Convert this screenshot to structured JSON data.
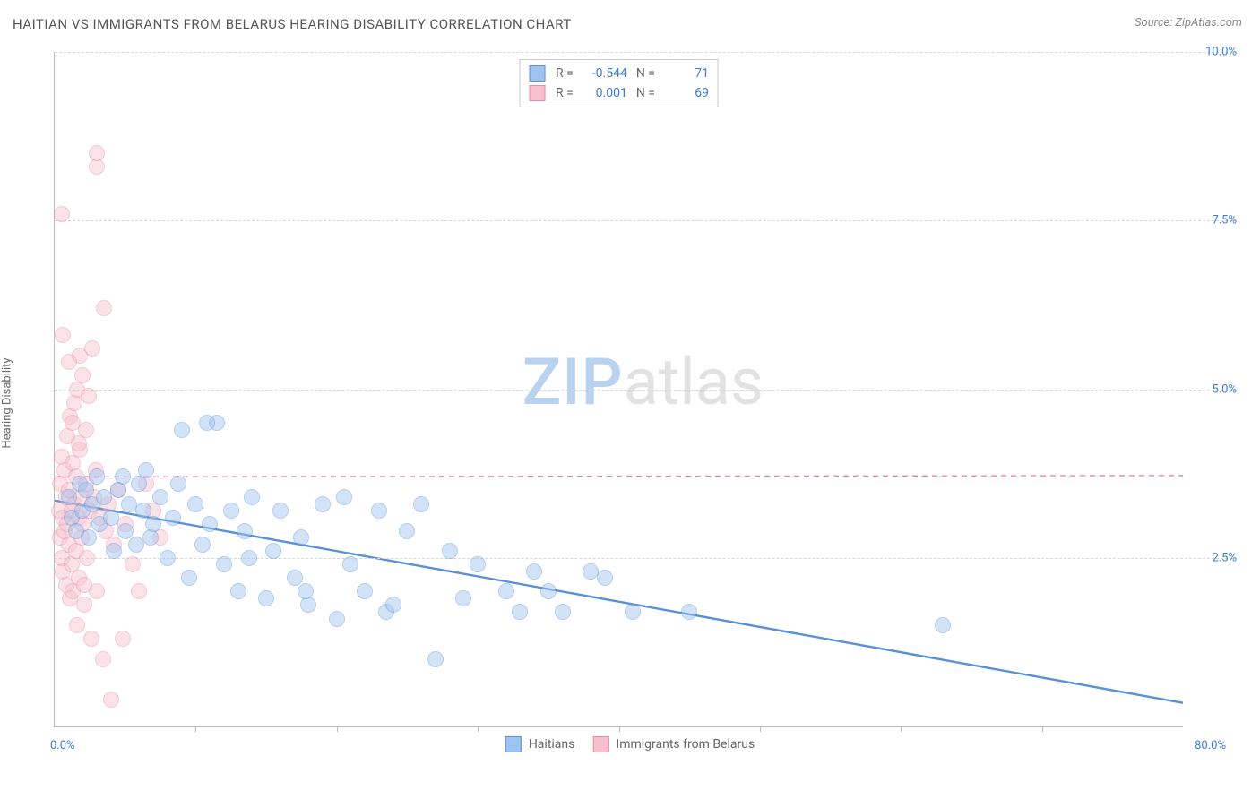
{
  "title": "HAITIAN VS IMMIGRANTS FROM BELARUS HEARING DISABILITY CORRELATION CHART",
  "source": "Source: ZipAtlas.com",
  "y_axis_label": "Hearing Disability",
  "watermark": {
    "part1": "ZIP",
    "part2": "atlas"
  },
  "chart": {
    "type": "scatter",
    "background_color": "#ffffff",
    "grid_color": "#d8d8d8",
    "axis_color": "#bbbbbb",
    "axis_label_color": "#3b7dd8",
    "x": {
      "min": 0,
      "max": 80,
      "min_label": "0.0%",
      "max_label": "80.0%",
      "tick_step": 10
    },
    "y": {
      "min": 0,
      "max": 10,
      "ticks": [
        2.5,
        5.0,
        7.5,
        10.0
      ],
      "tick_labels": [
        "2.5%",
        "5.0%",
        "7.5%",
        "10.0%"
      ]
    },
    "marker_radius": 9,
    "marker_opacity": 0.45,
    "marker_border_width": 1.2,
    "series": [
      {
        "name": "Haitians",
        "fill_color": "#9ec3ef",
        "border_color": "#5a91d6",
        "r_value": "-0.544",
        "n_value": "71",
        "trend": {
          "y_at_xmin": 3.35,
          "y_at_xmax": 0.35,
          "stroke_width": 2.4,
          "dash": "none"
        },
        "points": [
          [
            1.0,
            3.4
          ],
          [
            1.2,
            3.1
          ],
          [
            1.5,
            2.9
          ],
          [
            1.8,
            3.6
          ],
          [
            2.0,
            3.2
          ],
          [
            2.2,
            3.5
          ],
          [
            2.4,
            2.8
          ],
          [
            2.7,
            3.3
          ],
          [
            3.0,
            3.7
          ],
          [
            3.2,
            3.0
          ],
          [
            3.5,
            3.4
          ],
          [
            4.0,
            3.1
          ],
          [
            4.2,
            2.6
          ],
          [
            4.5,
            3.5
          ],
          [
            5.0,
            2.9
          ],
          [
            5.3,
            3.3
          ],
          [
            5.8,
            2.7
          ],
          [
            6.0,
            3.6
          ],
          [
            6.3,
            3.2
          ],
          [
            6.8,
            2.8
          ],
          [
            7.0,
            3.0
          ],
          [
            7.5,
            3.4
          ],
          [
            8.0,
            2.5
          ],
          [
            8.4,
            3.1
          ],
          [
            9.0,
            4.4
          ],
          [
            9.5,
            2.2
          ],
          [
            10.0,
            3.3
          ],
          [
            10.5,
            2.7
          ],
          [
            11.0,
            3.0
          ],
          [
            11.5,
            4.5
          ],
          [
            12.0,
            2.4
          ],
          [
            12.5,
            3.2
          ],
          [
            13.0,
            2.0
          ],
          [
            13.5,
            2.9
          ],
          [
            14.0,
            3.4
          ],
          [
            15.0,
            1.9
          ],
          [
            15.5,
            2.6
          ],
          [
            16.0,
            3.2
          ],
          [
            17.0,
            2.2
          ],
          [
            17.5,
            2.8
          ],
          [
            18.0,
            1.8
          ],
          [
            19.0,
            3.3
          ],
          [
            20.0,
            1.6
          ],
          [
            20.5,
            3.4
          ],
          [
            21.0,
            2.4
          ],
          [
            22.0,
            2.0
          ],
          [
            23.0,
            3.2
          ],
          [
            23.5,
            1.7
          ],
          [
            25.0,
            2.9
          ],
          [
            26.0,
            3.3
          ],
          [
            27.0,
            1.0
          ],
          [
            28.0,
            2.6
          ],
          [
            29.0,
            1.9
          ],
          [
            30.0,
            2.4
          ],
          [
            32.0,
            2.0
          ],
          [
            33.0,
            1.7
          ],
          [
            34.0,
            2.3
          ],
          [
            35.0,
            2.0
          ],
          [
            36.0,
            1.7
          ],
          [
            38.0,
            2.3
          ],
          [
            39.0,
            2.2
          ],
          [
            41.0,
            1.7
          ],
          [
            45.0,
            1.7
          ],
          [
            63.0,
            1.5
          ],
          [
            4.8,
            3.7
          ],
          [
            6.5,
            3.8
          ],
          [
            8.8,
            3.6
          ],
          [
            10.8,
            4.5
          ],
          [
            13.8,
            2.5
          ],
          [
            17.8,
            2.0
          ],
          [
            24.0,
            1.8
          ]
        ]
      },
      {
        "name": "Immigrants from Belarus",
        "fill_color": "#f7c0ce",
        "border_color": "#e88aa3",
        "r_value": "0.001",
        "n_value": "69",
        "trend": {
          "y_at_xmin": 3.7,
          "y_at_xmax": 3.72,
          "stroke_width": 1.4,
          "dash": "6,5"
        },
        "points": [
          [
            0.3,
            3.2
          ],
          [
            0.4,
            2.8
          ],
          [
            0.4,
            3.6
          ],
          [
            0.5,
            2.5
          ],
          [
            0.5,
            4.0
          ],
          [
            0.6,
            3.1
          ],
          [
            0.6,
            2.3
          ],
          [
            0.7,
            3.8
          ],
          [
            0.7,
            2.9
          ],
          [
            0.8,
            3.4
          ],
          [
            0.8,
            2.1
          ],
          [
            0.9,
            4.3
          ],
          [
            0.9,
            3.0
          ],
          [
            1.0,
            2.7
          ],
          [
            1.0,
            3.5
          ],
          [
            1.1,
            1.9
          ],
          [
            1.1,
            4.6
          ],
          [
            1.2,
            3.2
          ],
          [
            1.2,
            2.4
          ],
          [
            1.3,
            3.9
          ],
          [
            1.3,
            2.0
          ],
          [
            1.4,
            4.8
          ],
          [
            1.4,
            3.3
          ],
          [
            1.5,
            2.6
          ],
          [
            1.5,
            3.7
          ],
          [
            1.6,
            1.5
          ],
          [
            1.6,
            5.0
          ],
          [
            1.7,
            3.1
          ],
          [
            1.7,
            2.2
          ],
          [
            1.8,
            4.1
          ],
          [
            1.8,
            5.5
          ],
          [
            1.9,
            3.4
          ],
          [
            1.9,
            2.8
          ],
          [
            2.0,
            5.2
          ],
          [
            2.0,
            3.0
          ],
          [
            2.1,
            1.8
          ],
          [
            2.2,
            4.4
          ],
          [
            2.2,
            3.6
          ],
          [
            2.3,
            2.5
          ],
          [
            2.4,
            4.9
          ],
          [
            2.5,
            3.2
          ],
          [
            2.6,
            1.3
          ],
          [
            2.7,
            5.6
          ],
          [
            2.8,
            3.4
          ],
          [
            3.0,
            2.0
          ],
          [
            3.0,
            8.3
          ],
          [
            3.0,
            8.5
          ],
          [
            3.2,
            3.1
          ],
          [
            3.4,
            1.0
          ],
          [
            3.5,
            6.2
          ],
          [
            3.6,
            2.9
          ],
          [
            3.8,
            3.3
          ],
          [
            4.0,
            0.4
          ],
          [
            4.2,
            2.7
          ],
          [
            4.5,
            3.5
          ],
          [
            4.8,
            1.3
          ],
          [
            5.0,
            3.0
          ],
          [
            5.5,
            2.4
          ],
          [
            6.0,
            2.0
          ],
          [
            6.5,
            3.6
          ],
          [
            7.0,
            3.2
          ],
          [
            7.5,
            2.8
          ],
          [
            0.5,
            7.6
          ],
          [
            1.0,
            5.4
          ],
          [
            1.3,
            4.5
          ],
          [
            0.6,
            5.8
          ],
          [
            2.9,
            3.8
          ],
          [
            1.7,
            4.2
          ],
          [
            2.1,
            2.1
          ]
        ]
      }
    ]
  },
  "legend_top": {
    "r_label": "R =",
    "n_label": "N ="
  },
  "legend_bottom": {
    "series1": "Haitians",
    "series2": "Immigrants from Belarus"
  }
}
